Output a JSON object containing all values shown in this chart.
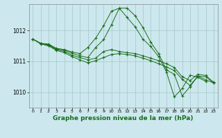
{
  "background_color": "#cce8ee",
  "grid_color": "#aacccc",
  "line_color": "#1a6b1a",
  "marker_color": "#1a6b1a",
  "title": "Graphe pression niveau de la mer (hPa)",
  "ylim": [
    1009.5,
    1012.85
  ],
  "xlim": [
    -0.5,
    23.5
  ],
  "yticks": [
    1010,
    1011,
    1012
  ],
  "xticks": [
    0,
    1,
    2,
    3,
    4,
    5,
    6,
    7,
    8,
    9,
    10,
    11,
    12,
    13,
    14,
    15,
    16,
    17,
    18,
    19,
    20,
    21,
    22,
    23
  ],
  "series": [
    [
      1011.72,
      1011.58,
      1011.56,
      1011.42,
      1011.38,
      1011.3,
      1011.25,
      1011.45,
      1011.75,
      1012.15,
      1012.62,
      1012.72,
      1012.42,
      1012.12,
      1011.72,
      1011.48,
      1011.15,
      1010.65,
      1009.85,
      1010.12,
      1010.55,
      1010.48,
      1010.35,
      null
    ],
    [
      1011.72,
      1011.58,
      1011.54,
      1011.4,
      1011.36,
      1011.26,
      1011.18,
      1011.12,
      1011.45,
      1011.7,
      1012.18,
      1012.72,
      1012.72,
      1012.48,
      1012.1,
      1011.62,
      1011.25,
      1010.72,
      1010.58,
      1009.88,
      1010.18,
      1010.52,
      1010.4,
      1010.3
    ],
    [
      1011.72,
      1011.58,
      1011.52,
      1011.38,
      1011.32,
      1011.2,
      1011.12,
      1011.05,
      1011.1,
      1011.32,
      1011.38,
      1011.32,
      1011.28,
      1011.25,
      1011.18,
      1011.1,
      1011.02,
      1010.92,
      1010.8,
      1010.5,
      1010.38,
      1010.58,
      1010.54,
      1010.32
    ],
    [
      1011.72,
      1011.56,
      1011.5,
      1011.35,
      1011.28,
      1011.15,
      1011.05,
      1010.95,
      1011.02,
      1011.12,
      1011.22,
      1011.25,
      1011.22,
      1011.18,
      1011.1,
      1011.02,
      1010.92,
      1010.82,
      1010.7,
      1010.42,
      1010.22,
      1010.52,
      1010.5,
      1010.3
    ]
  ]
}
